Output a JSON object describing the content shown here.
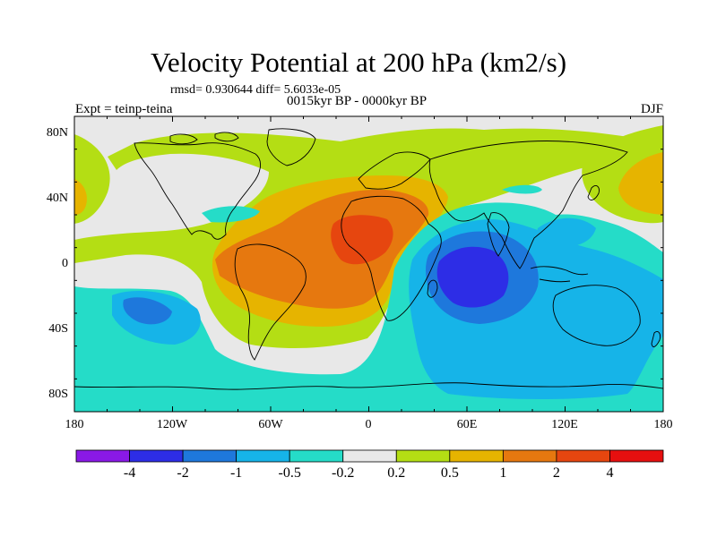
{
  "title": "Velocity Potential at 200 hPa (km2/s)",
  "stats_line": "rmsd= 0.930644 diff= 5.6033e-05",
  "subtitle": "0015kyr BP - 0000kyr BP",
  "experiment": "Expt = teinp-teina",
  "season": "DJF",
  "lat_labels": [
    "80N",
    "40N",
    "0",
    "40S",
    "80S"
  ],
  "lon_labels": [
    "180",
    "120W",
    "60W",
    "0",
    "60E",
    "120E",
    "180"
  ],
  "colorbar": {
    "labels": [
      "-4",
      "-2",
      "-1",
      "-0.5",
      "-0.2",
      "0.2",
      "0.5",
      "1",
      "2",
      "4"
    ],
    "colors": [
      "#8a19e6",
      "#2d2de6",
      "#1e78dc",
      "#16b4e8",
      "#25dcc8",
      "#e8e8e8",
      "#b4de14",
      "#e6b400",
      "#e6780f",
      "#e6460f",
      "#e60f0f"
    ]
  },
  "map_colors": {
    "neutral": "#e8e8e8",
    "pos_0_2": "#b4de14",
    "pos_0_5": "#e6b400",
    "pos_1": "#e6780f",
    "pos_2": "#e6460f",
    "neg_0_2": "#25dcc8",
    "neg_0_5": "#16b4e8",
    "neg_1": "#1e78dc",
    "neg_2": "#2d2de6",
    "coastline": "#000000"
  }
}
